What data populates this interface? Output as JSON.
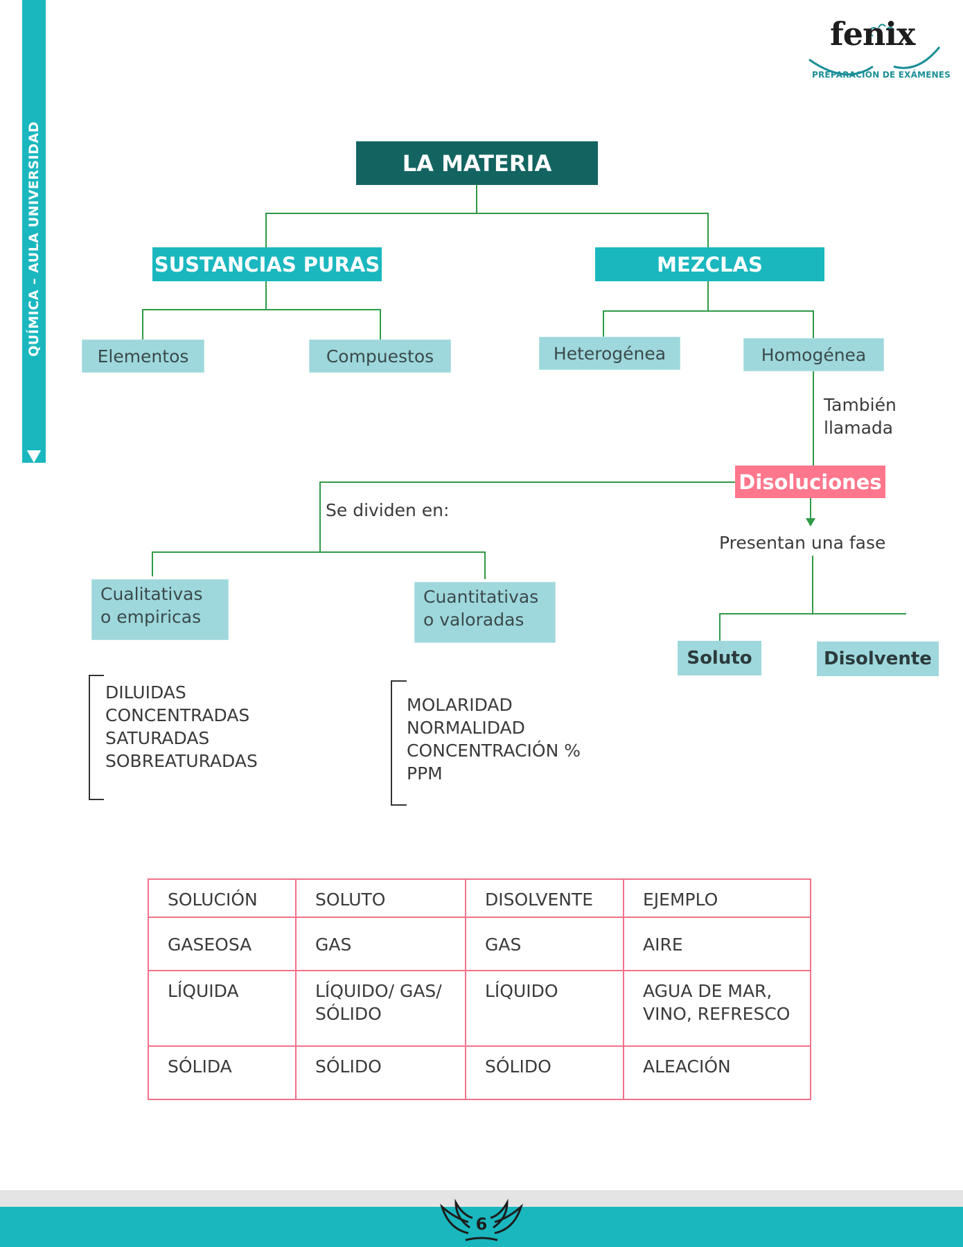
{
  "side_label": "QUÍMICA – AULA UNIVERSIDAD",
  "logo": {
    "word": "fenix",
    "tagline": "PREPARACIÓN DE EXÁMENES"
  },
  "map": {
    "root": "LA MATERIA",
    "pure": "SUSTANCIAS PURAS",
    "mixtures": "MEZCLAS",
    "elements": "Elementos",
    "compounds": "Compuestos",
    "heterogeneous": "Heterogénea",
    "homogeneous": "Homogénea",
    "also_called_1": "También",
    "also_called_2": "llamada",
    "solutions": "Disoluciones",
    "divided_into": "Se dividen en:",
    "one_phase": "Presentan una fase",
    "qualitative_1": "Cualitativas",
    "qualitative_2": "o empiricas",
    "quantitative_1": "Cuantitativas",
    "quantitative_2": "o valoradas",
    "solute": "Soluto",
    "solvent": "Disolvente",
    "qualitative_list": [
      "DILUIDAS",
      "CONCENTRADAS",
      "SATURADAS",
      "SOBREATURADAS"
    ],
    "quantitative_list": [
      "MOLARIDAD",
      "NORMALIDAD",
      "CONCENTRACIÓN %",
      "PPM"
    ]
  },
  "table": {
    "header": [
      "SOLUCIÓN",
      "SOLUTO",
      "DISOLVENTE",
      "EJEMPLO"
    ],
    "rows": [
      [
        "GASEOSA",
        "GAS",
        "GAS",
        "AIRE"
      ],
      [
        "LÍQUIDA",
        "LÍQUIDO/ GAS/ SÓLIDO",
        "LÍQUIDO",
        "AGUA DE MAR, VINO, REFRESCO"
      ],
      [
        "SÓLIDA",
        "SÓLIDO",
        "SÓLIDO",
        "ALEACIÓN"
      ]
    ]
  },
  "footer": {
    "page_number": "6"
  },
  "colors": {
    "teal": "#1ab7bf",
    "dark_teal": "#136461",
    "light_teal": "#9ed8dc",
    "pink": "#ff778c",
    "line_green": "#2e9a45",
    "table_border": "#f27189"
  }
}
